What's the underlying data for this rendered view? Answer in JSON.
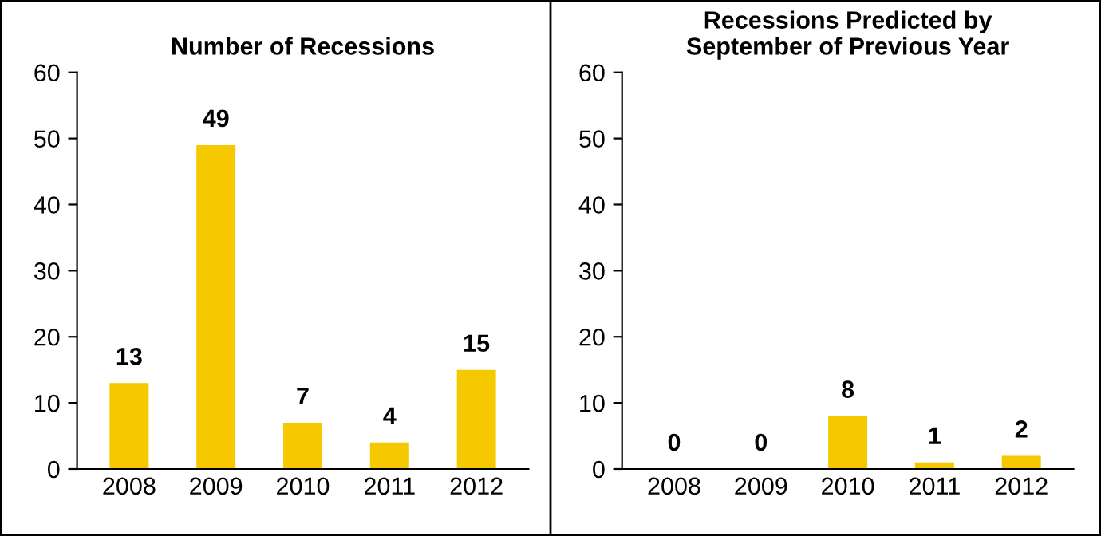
{
  "chart_data": [
    {
      "type": "bar",
      "title": "Number of Recessions",
      "categories": [
        "2008",
        "2009",
        "2010",
        "2011",
        "2012"
      ],
      "values": [
        13,
        49,
        7,
        4,
        15
      ],
      "color": "#f5c800",
      "ylim": [
        0,
        60
      ],
      "yticks": [
        0,
        10,
        20,
        30,
        40,
        50,
        60
      ],
      "data_labels": true,
      "grid": false,
      "legend": false
    },
    {
      "type": "bar",
      "title": "Recessions Predicted by\nSeptember of Previous Year",
      "categories": [
        "2008",
        "2009",
        "2010",
        "2011",
        "2012"
      ],
      "values": [
        0,
        0,
        8,
        1,
        2
      ],
      "color": "#f5c800",
      "ylim": [
        0,
        60
      ],
      "yticks": [
        0,
        10,
        20,
        30,
        40,
        50,
        60
      ],
      "data_labels": true,
      "grid": false,
      "legend": false
    }
  ]
}
